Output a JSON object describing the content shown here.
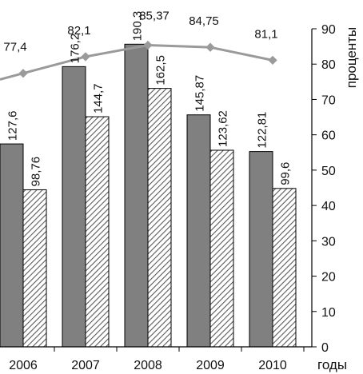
{
  "chart_data": {
    "type": "bar",
    "categories": [
      "2006",
      "2007",
      "2008",
      "2009",
      "2010"
    ],
    "series": [
      {
        "values": [
          127.6,
          176.2,
          190.3,
          145.87,
          122.81
        ],
        "color": "#808080",
        "pattern": "solid"
      },
      {
        "values": [
          98.76,
          144.7,
          162.5,
          123.62,
          99.6
        ],
        "color": "#ffffff",
        "pattern": "hatched"
      }
    ],
    "line_series": {
      "values": [
        77.4,
        82.1,
        85.37,
        84.75,
        81.1
      ],
      "color": "#9a9a9a"
    },
    "bar_labels": [
      [
        "127,6",
        "176,2",
        "190,3",
        "145,87",
        "122,81"
      ],
      [
        "98,76",
        "144,7",
        "162,5",
        "123,62",
        "99,6"
      ]
    ],
    "line_labels": [
      "77,4",
      "82,1",
      "85,37",
      "84,75",
      "81,1"
    ],
    "xlabel": "годы",
    "ylabel": "проценты",
    "ylim": [
      0,
      90
    ],
    "y_ticks": [
      0,
      10,
      20,
      30,
      40,
      50,
      60,
      70,
      80,
      90
    ],
    "bars_ymax": 200,
    "grid": false,
    "legend": "none"
  }
}
